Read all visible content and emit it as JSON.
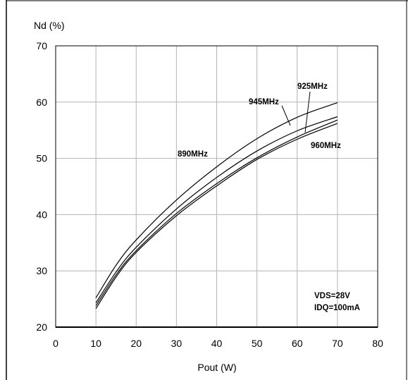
{
  "chart_data": {
    "type": "line",
    "ylabel": "Nd (%)",
    "xlabel": "Pout (W)",
    "xlim": [
      0,
      80
    ],
    "ylim": [
      20,
      70
    ],
    "x_ticks": [
      0,
      10,
      20,
      30,
      40,
      50,
      60,
      70,
      80
    ],
    "y_ticks": [
      20,
      30,
      40,
      50,
      60,
      70
    ],
    "grid": true,
    "series": [
      {
        "name": "890MHz",
        "x": [
          10,
          15,
          20,
          30,
          40,
          50,
          60,
          70
        ],
        "y": [
          25.2,
          31.0,
          35.5,
          42.6,
          48.5,
          53.5,
          57.3,
          59.9
        ]
      },
      {
        "name": "945MHz",
        "x": [
          10,
          15,
          20,
          30,
          40,
          50,
          60,
          70
        ],
        "y": [
          24.3,
          29.8,
          34.2,
          41.0,
          46.6,
          51.3,
          54.9,
          57.4
        ]
      },
      {
        "name": "925MHz",
        "x": [
          10,
          15,
          20,
          30,
          40,
          50,
          60,
          70
        ],
        "y": [
          23.8,
          29.3,
          33.6,
          40.2,
          45.5,
          50.1,
          53.8,
          56.8
        ]
      },
      {
        "name": "960MHz",
        "x": [
          10,
          15,
          20,
          30,
          40,
          50,
          60,
          70
        ],
        "y": [
          23.3,
          28.9,
          33.3,
          39.8,
          45.1,
          49.8,
          53.4,
          56.2
        ]
      }
    ],
    "annotations": [
      "890MHz",
      "945MHz",
      "925MHz",
      "960MHz",
      "VDS=28V",
      "IDQ=100mA"
    ]
  }
}
